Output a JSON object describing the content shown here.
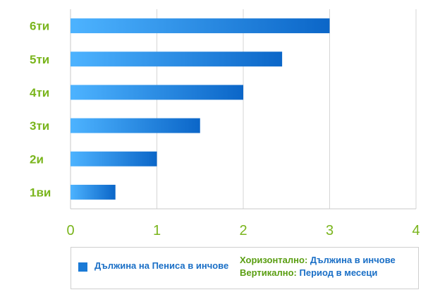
{
  "chart_data": {
    "type": "bar",
    "orientation": "horizontal",
    "categories": [
      "6ти",
      "5ти",
      "4ти",
      "3ти",
      "2и",
      "1ви"
    ],
    "values": [
      3.0,
      2.45,
      2.0,
      1.5,
      1.0,
      0.52
    ],
    "xlim": [
      0,
      4
    ],
    "xticks": [
      "0",
      "1",
      "2",
      "3",
      "4"
    ],
    "grid": true,
    "series": [
      {
        "name": "Дължина на Пениса в инчове"
      }
    ],
    "bar_color_start": "#4db3ff",
    "bar_color_end": "#0b66c8",
    "label_color": "#7ab51d"
  },
  "legend": {
    "series_label": "Дължина на Пениса в инчове",
    "horizontal_key": "Хоризонтално:",
    "horizontal_value": "Дължина в инчове",
    "vertical_key": "Вертикално:",
    "vertical_value": "Период в месеци"
  }
}
